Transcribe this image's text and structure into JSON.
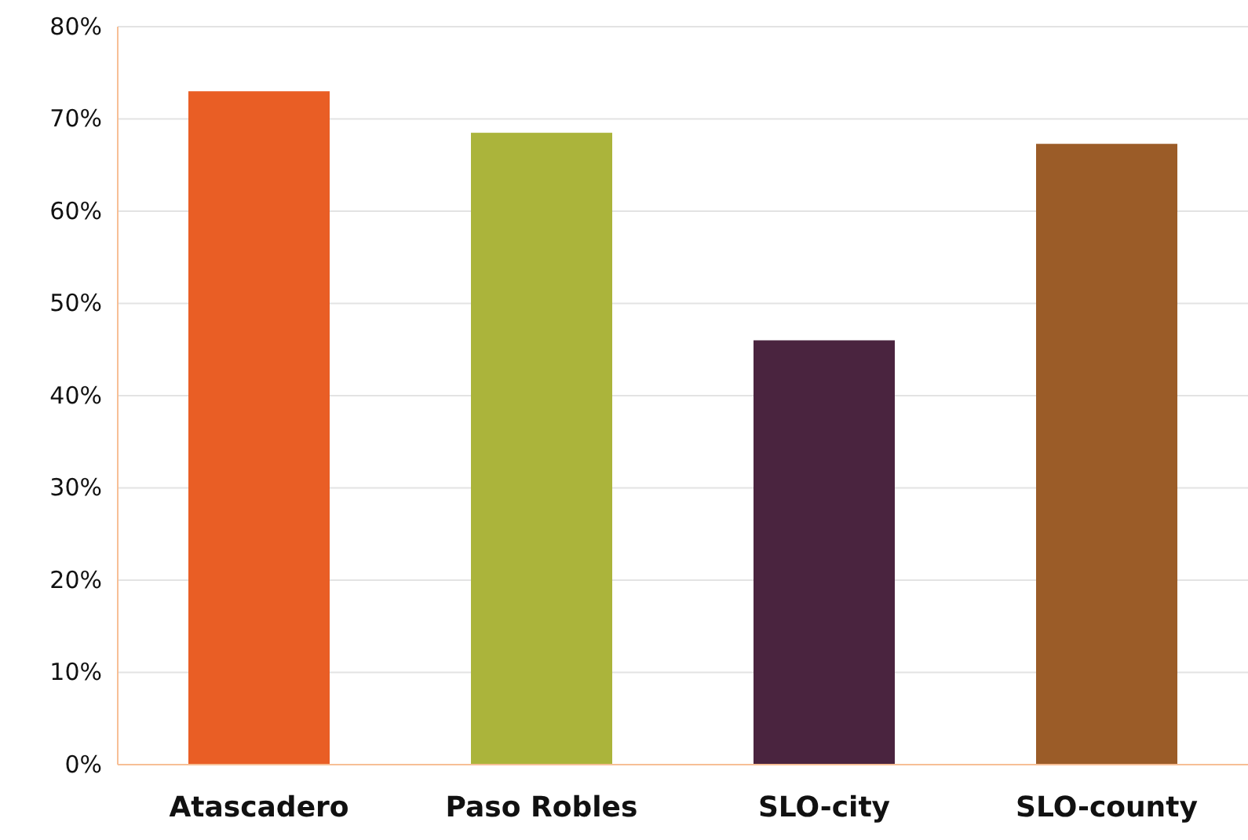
{
  "chart_data": {
    "type": "bar",
    "categories": [
      "Atascadero",
      "Paso Robles",
      "SLO-city",
      "SLO-county"
    ],
    "values": [
      73,
      68.5,
      46,
      67.3
    ],
    "colors": [
      "#e95e25",
      "#abb43b",
      "#4a243f",
      "#9b5c28"
    ],
    "ylim": [
      0,
      80
    ],
    "yticks": [
      {
        "value": 0,
        "label": "0%"
      },
      {
        "value": 10,
        "label": "10%"
      },
      {
        "value": 20,
        "label": "20%"
      },
      {
        "value": 30,
        "label": "30%"
      },
      {
        "value": 40,
        "label": "40%"
      },
      {
        "value": 50,
        "label": "50%"
      },
      {
        "value": 60,
        "label": "60%"
      },
      {
        "value": 70,
        "label": "70%"
      },
      {
        "value": 80,
        "label": "80%"
      }
    ],
    "grid": "y"
  }
}
